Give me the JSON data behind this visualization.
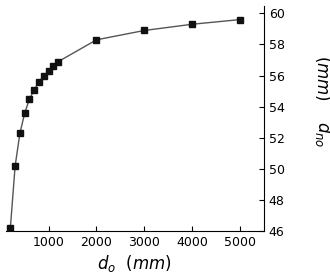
{
  "x": [
    200,
    300,
    400,
    500,
    600,
    700,
    800,
    900,
    1000,
    1100,
    1200,
    2000,
    3000,
    4000,
    5000
  ],
  "y": [
    46.2,
    50.2,
    52.3,
    53.6,
    54.5,
    55.1,
    55.6,
    56.0,
    56.3,
    56.6,
    56.9,
    58.3,
    58.9,
    59.3,
    59.6
  ],
  "xlim": [
    100,
    5500
  ],
  "ylim": [
    46,
    60.5
  ],
  "xticks": [
    1000,
    2000,
    3000,
    4000,
    5000
  ],
  "yticks": [
    46,
    48,
    50,
    52,
    54,
    56,
    58,
    60
  ],
  "xlabel": "$d_o$  $(mm)$",
  "ylabel_subscript": "$d_{no}$",
  "ylabel_units": "$(mm)$",
  "line_color": "#555555",
  "marker": "s",
  "marker_color": "#111111",
  "marker_size": 4.5,
  "linewidth": 1.0,
  "tick_labelsize": 9,
  "xlabel_fontsize": 12,
  "ylabel_fontsize": 12,
  "background_color": "#ffffff"
}
